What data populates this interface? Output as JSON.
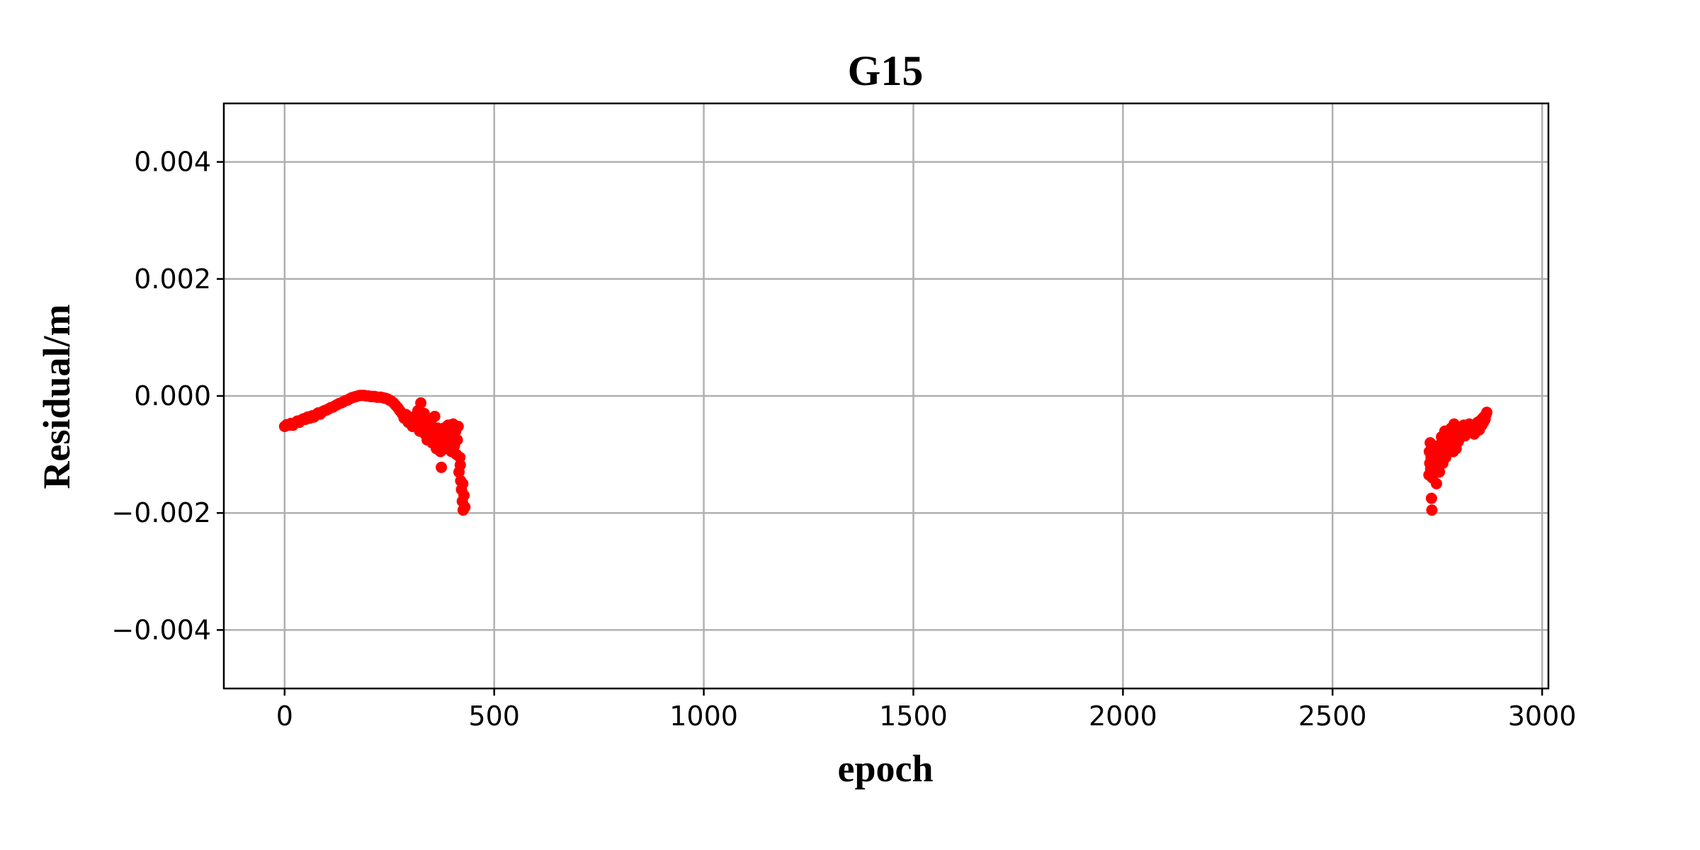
{
  "chart_data": {
    "type": "scatter",
    "title": "G15",
    "xlabel": "epoch",
    "ylabel": "Residual/m",
    "xlim": [
      -145,
      3015
    ],
    "ylim": [
      -0.005,
      0.005
    ],
    "xticks": [
      0,
      500,
      1000,
      1500,
      2000,
      2500,
      3000
    ],
    "xtick_labels": [
      "0",
      "500",
      "1000",
      "1500",
      "2000",
      "2500",
      "3000"
    ],
    "yticks": [
      0.004,
      0.002,
      0.0,
      -0.002,
      -0.004
    ],
    "ytick_labels": [
      "0.004",
      "0.002",
      "0.000",
      "−0.002",
      "−0.004"
    ],
    "grid": true,
    "marker_color": "#ff0000",
    "series": [
      {
        "values": [
          [
            0,
            -0.00052
          ],
          [
            5,
            -0.00049
          ],
          [
            10,
            -0.0005
          ],
          [
            15,
            -0.00047
          ],
          [
            20,
            -0.0005
          ],
          [
            25,
            -0.00046
          ],
          [
            30,
            -0.00043
          ],
          [
            35,
            -0.00045
          ],
          [
            40,
            -0.00041
          ],
          [
            45,
            -0.00039
          ],
          [
            50,
            -0.0004
          ],
          [
            55,
            -0.00036
          ],
          [
            60,
            -0.00038
          ],
          [
            65,
            -0.00034
          ],
          [
            70,
            -0.00036
          ],
          [
            75,
            -0.00032
          ],
          [
            80,
            -0.00029
          ],
          [
            85,
            -0.00031
          ],
          [
            90,
            -0.00027
          ],
          [
            95,
            -0.00025
          ],
          [
            100,
            -0.00024
          ],
          [
            105,
            -0.00022
          ],
          [
            110,
            -0.0002
          ],
          [
            115,
            -0.00019
          ],
          [
            120,
            -0.00017
          ],
          [
            125,
            -0.00015
          ],
          [
            130,
            -0.00013
          ],
          [
            135,
            -0.00012
          ],
          [
            140,
            -0.0001
          ],
          [
            145,
            -8e-05
          ],
          [
            150,
            -7e-05
          ],
          [
            155,
            -5e-05
          ],
          [
            160,
            -3e-05
          ],
          [
            165,
            -2e-05
          ],
          [
            170,
            -1e-05
          ],
          [
            175,
            0.0
          ],
          [
            180,
            1e-05
          ],
          [
            185,
            1e-05
          ],
          [
            190,
            1e-05
          ],
          [
            195,
            0.0
          ],
          [
            200,
            0.0
          ],
          [
            205,
            -1e-05
          ],
          [
            210,
            -1e-05
          ],
          [
            215,
            -1e-05
          ],
          [
            220,
            -2e-05
          ],
          [
            225,
            -2e-05
          ],
          [
            230,
            -2e-05
          ],
          [
            235,
            -3e-05
          ],
          [
            240,
            -4e-05
          ],
          [
            245,
            -5e-05
          ],
          [
            250,
            -7e-05
          ],
          [
            255,
            -9e-05
          ],
          [
            260,
            -0.00012
          ],
          [
            265,
            -0.00016
          ],
          [
            270,
            -0.0002
          ],
          [
            275,
            -0.00025
          ],
          [
            280,
            -0.0003
          ],
          [
            285,
            -0.00038
          ],
          [
            290,
            -0.00032
          ],
          [
            295,
            -0.00045
          ],
          [
            300,
            -0.0004
          ],
          [
            305,
            -0.00052
          ],
          [
            310,
            -0.00035
          ],
          [
            315,
            -0.0005
          ],
          [
            318,
            -0.00025
          ],
          [
            320,
            -0.00045
          ],
          [
            322,
            -0.0006
          ],
          [
            325,
            -0.00012
          ],
          [
            328,
            -0.0004
          ],
          [
            330,
            -0.00055
          ],
          [
            333,
            -0.0003
          ],
          [
            335,
            -0.00065
          ],
          [
            338,
            -0.00048
          ],
          [
            340,
            -0.00075
          ],
          [
            342,
            -0.00058
          ],
          [
            345,
            -0.0004
          ],
          [
            348,
            -0.0007
          ],
          [
            350,
            -0.0005
          ],
          [
            352,
            -0.0008
          ],
          [
            355,
            -0.0006
          ],
          [
            358,
            -0.00035
          ],
          [
            360,
            -0.00068
          ],
          [
            362,
            -0.0009
          ],
          [
            365,
            -0.00055
          ],
          [
            368,
            -0.00075
          ],
          [
            370,
            -0.0006
          ],
          [
            372,
            -0.00095
          ],
          [
            374,
            -0.00122
          ],
          [
            376,
            -0.0007
          ],
          [
            378,
            -0.00085
          ],
          [
            380,
            -0.00055
          ],
          [
            382,
            -0.00075
          ],
          [
            385,
            -0.00065
          ],
          [
            388,
            -0.0009
          ],
          [
            390,
            -0.0005
          ],
          [
            392,
            -0.0008
          ],
          [
            395,
            -0.0006
          ],
          [
            398,
            -0.00095
          ],
          [
            400,
            -0.0007
          ],
          [
            402,
            -0.00048
          ],
          [
            405,
            -0.00085
          ],
          [
            408,
            -0.0006
          ],
          [
            410,
            -0.001
          ],
          [
            412,
            -0.00075
          ],
          [
            414,
            -0.00052
          ],
          [
            416,
            -0.0013
          ],
          [
            418,
            -0.00105
          ],
          [
            420,
            -0.00145
          ],
          [
            422,
            -0.0016
          ],
          [
            424,
            -0.0018
          ],
          [
            426,
            -0.00195
          ],
          [
            428,
            -0.0017
          ],
          [
            430,
            -0.0019
          ],
          [
            425,
            -0.0015
          ],
          [
            419,
            -0.00118
          ]
        ]
      },
      {
        "values": [
          [
            2730,
            -0.00135
          ],
          [
            2731,
            -0.00095
          ],
          [
            2732,
            -0.00115
          ],
          [
            2733,
            -0.0008
          ],
          [
            2734,
            -0.00125
          ],
          [
            2735,
            -0.00105
          ],
          [
            2736,
            -0.00175
          ],
          [
            2737,
            -0.00195
          ],
          [
            2738,
            -0.0014
          ],
          [
            2740,
            -0.0011
          ],
          [
            2742,
            -0.0009
          ],
          [
            2744,
            -0.00125
          ],
          [
            2746,
            -0.001
          ],
          [
            2748,
            -0.0015
          ],
          [
            2750,
            -0.00115
          ],
          [
            2752,
            -0.00085
          ],
          [
            2755,
            -0.0013
          ],
          [
            2758,
            -0.001
          ],
          [
            2760,
            -0.0007
          ],
          [
            2763,
            -0.00115
          ],
          [
            2765,
            -0.0009
          ],
          [
            2768,
            -0.0006
          ],
          [
            2770,
            -0.00105
          ],
          [
            2773,
            -0.0008
          ],
          [
            2775,
            -0.00095
          ],
          [
            2778,
            -0.00065
          ],
          [
            2780,
            -0.00085
          ],
          [
            2783,
            -0.00055
          ],
          [
            2785,
            -0.00075
          ],
          [
            2788,
            -0.00095
          ],
          [
            2790,
            -0.00048
          ],
          [
            2793,
            -0.0007
          ],
          [
            2795,
            -0.0009
          ],
          [
            2798,
            -0.0006
          ],
          [
            2800,
            -0.00078
          ],
          [
            2803,
            -0.00055
          ],
          [
            2806,
            -0.0007
          ],
          [
            2810,
            -0.0006
          ],
          [
            2813,
            -0.0005
          ],
          [
            2816,
            -0.00068
          ],
          [
            2820,
            -0.00055
          ],
          [
            2823,
            -0.00062
          ],
          [
            2826,
            -0.00048
          ],
          [
            2830,
            -0.0006
          ],
          [
            2834,
            -0.00052
          ],
          [
            2838,
            -0.00065
          ],
          [
            2842,
            -0.00055
          ],
          [
            2846,
            -0.00045
          ],
          [
            2850,
            -0.00058
          ],
          [
            2853,
            -0.00042
          ],
          [
            2856,
            -0.0005
          ],
          [
            2858,
            -0.00038
          ],
          [
            2860,
            -0.00045
          ],
          [
            2862,
            -0.00035
          ],
          [
            2864,
            -0.0004
          ],
          [
            2866,
            -0.00032
          ],
          [
            2868,
            -0.00028
          ]
        ]
      }
    ]
  }
}
